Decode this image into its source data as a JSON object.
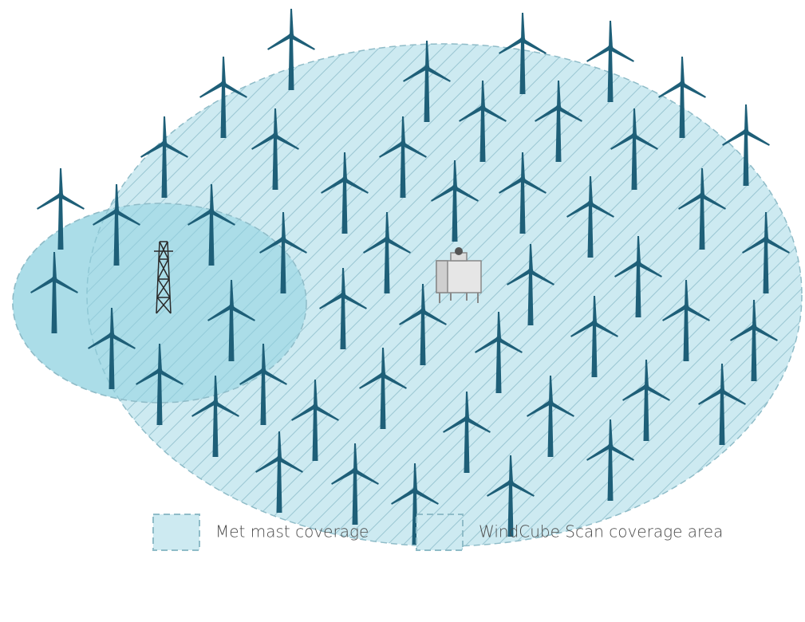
{
  "legend": {
    "items": [
      {
        "label": "Met mast coverage"
      },
      {
        "label": "WindCube Scan coverage area"
      }
    ]
  }
}
